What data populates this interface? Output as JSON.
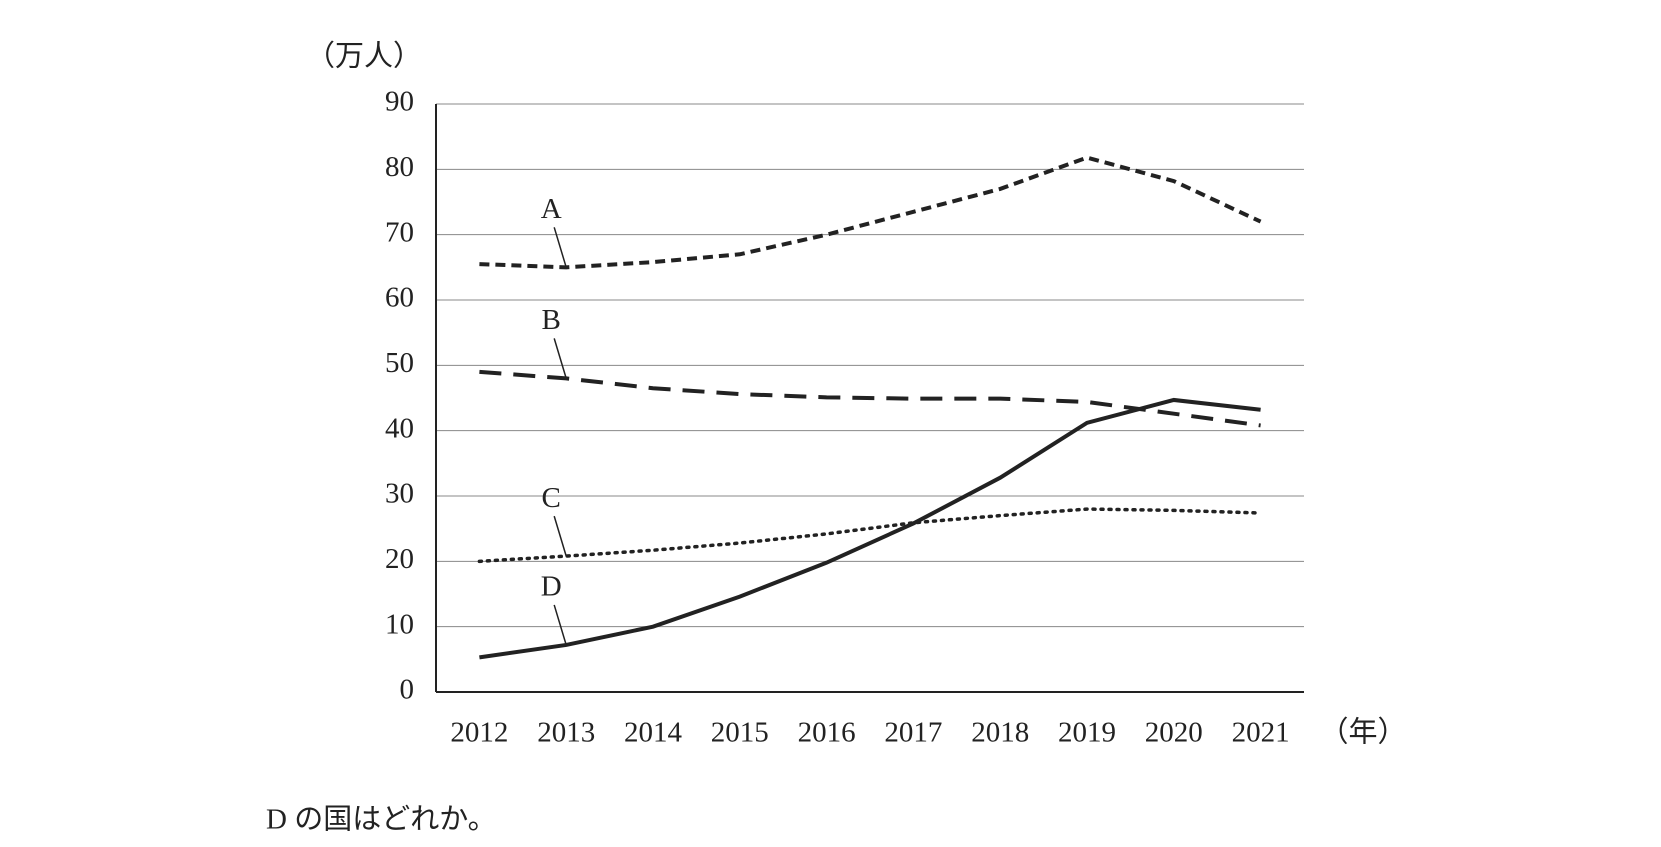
{
  "chart_data": {
    "type": "line",
    "y_label": "（万人）",
    "x_label": "（年）",
    "categories": [
      "2012",
      "2013",
      "2014",
      "2015",
      "2016",
      "2017",
      "2018",
      "2019",
      "2020",
      "2021"
    ],
    "series": [
      {
        "name": "A",
        "color": "#222222",
        "dash": "dashed",
        "values": [
          65.5,
          65,
          65.8,
          67,
          70,
          73.5,
          77,
          81.8,
          78.2,
          72
        ]
      },
      {
        "name": "B",
        "color": "#222222",
        "dash": "long-dashed",
        "values": [
          49,
          48,
          46.5,
          45.6,
          45.1,
          44.9,
          44.9,
          44.4,
          42.6,
          40.8
        ]
      },
      {
        "name": "C",
        "color": "#222222",
        "dash": "dotted",
        "values": [
          20,
          20.8,
          21.7,
          22.8,
          24.2,
          25.9,
          27,
          28,
          27.8,
          27.4
        ]
      },
      {
        "name": "D",
        "color": "#222222",
        "dash": "solid",
        "values": [
          5.3,
          7.2,
          10,
          14.6,
          19.8,
          25.8,
          32.8,
          41.2,
          44.7,
          43.2
        ]
      }
    ],
    "ylim": [
      0,
      90
    ],
    "yticks": [
      0,
      10,
      20,
      30,
      40,
      50,
      60,
      70,
      80,
      90
    ],
    "grid": true
  },
  "question": "D の国はどれか。"
}
